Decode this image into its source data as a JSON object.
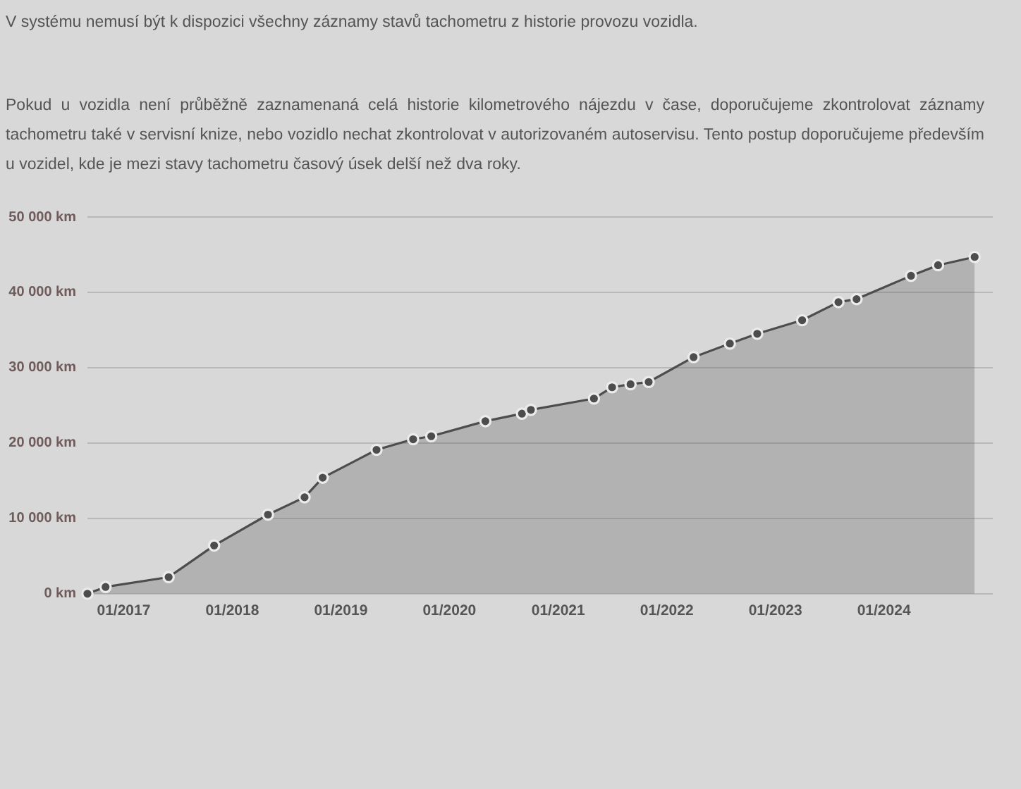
{
  "chart_data": {
    "type": "area",
    "annotations": [
      "V systému nemusí být k dispozici všechny záznamy stavů tachometru z historie provozu vozidla.",
      "Pokud u vozidla není průběžně zaznamenaná celá historie kilometrového nájezdu v čase, doporučujeme zkontrolovat záznamy tachometru také v servisní knize, nebo vozidlo nechat zkontrolovat v autorizovaném autoservisu. Tento postup doporučujeme především u vozidel, kde je mezi stavy tachometru časový úsek delší než dva roky."
    ],
    "x": [
      "2016-09",
      "2016-11",
      "2017-06",
      "2017-11",
      "2018-05",
      "2018-09",
      "2018-11",
      "2019-05",
      "2019-09",
      "2019-11",
      "2020-05",
      "2020-09",
      "2020-10",
      "2021-05",
      "2021-07",
      "2021-09",
      "2021-11",
      "2022-04",
      "2022-08",
      "2022-11",
      "2023-04",
      "2023-08",
      "2023-10",
      "2024-04",
      "2024-07",
      "2024-11"
    ],
    "series": [
      {
        "color": "#4d4d4d",
        "values": [
          0,
          900,
          2200,
          6400,
          10500,
          12800,
          15400,
          19100,
          20500,
          20900,
          22900,
          23900,
          24400,
          25900,
          27400,
          27800,
          28100,
          31400,
          33200,
          34500,
          36300,
          38700,
          39100,
          42200,
          43600,
          44700
        ]
      }
    ],
    "xlim": [
      "2016-09",
      "2025-01"
    ],
    "xticks": [
      {
        "value": "2017-01",
        "label": "01/2017"
      },
      {
        "value": "2018-01",
        "label": "01/2018"
      },
      {
        "value": "2019-01",
        "label": "01/2019"
      },
      {
        "value": "2020-01",
        "label": "01/2020"
      },
      {
        "value": "2021-01",
        "label": "01/2021"
      },
      {
        "value": "2022-01",
        "label": "01/2022"
      },
      {
        "value": "2023-01",
        "label": "01/2023"
      },
      {
        "value": "2024-01",
        "label": "01/2024"
      }
    ],
    "ylim": [
      0,
      50000
    ],
    "yticks": [
      {
        "value": 0,
        "label": "0 km"
      },
      {
        "value": 10000,
        "label": "10 000 km"
      },
      {
        "value": 20000,
        "label": "20 000 km"
      },
      {
        "value": 30000,
        "label": "30 000 km"
      },
      {
        "value": 40000,
        "label": "40 000 km"
      },
      {
        "value": 50000,
        "label": "50 000 km"
      }
    ],
    "grid": "y",
    "marker": "circle"
  }
}
